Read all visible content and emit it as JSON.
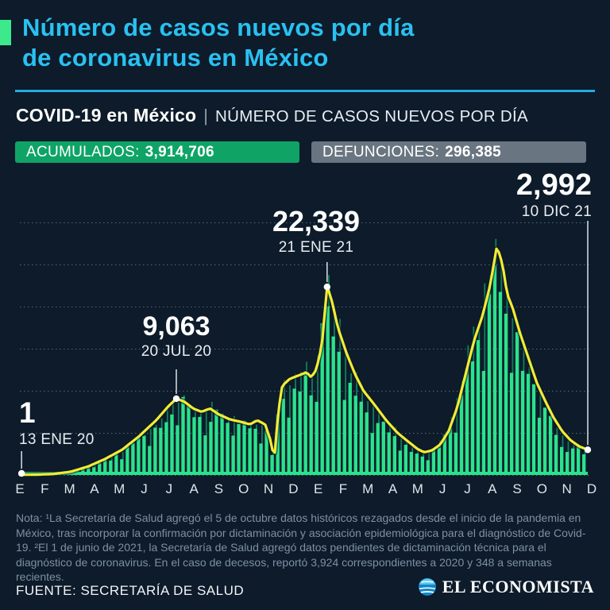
{
  "header": {
    "title_line1": "Número de casos nuevos por día",
    "title_line2": "de coronavirus en México"
  },
  "subtitle": {
    "bold": "COVID-19 en México",
    "separator": "|",
    "rest": "NÚMERO DE CASOS NUEVOS POR DÍA"
  },
  "badges": {
    "accumulated_label": "ACUMULADOS:",
    "accumulated_value": "3,914,706",
    "deaths_label": "DEFUNCIONES:",
    "deaths_value": "296,385"
  },
  "chart_data": {
    "type": "bar+line",
    "title": "COVID-19 en México | Número de casos nuevos por día",
    "legend_position": "none",
    "grid": "dotted-horizontal",
    "ylim": [
      0,
      30000
    ],
    "y_gridline_values": [
      0,
      5000,
      10000,
      15000,
      20000,
      25000,
      30000
    ],
    "x_months": [
      "E",
      "F",
      "M",
      "A",
      "M",
      "J",
      "J",
      "A",
      "S",
      "O",
      "N",
      "D",
      "E",
      "F",
      "M",
      "A",
      "M",
      "J",
      "J",
      "A",
      "S",
      "O",
      "N",
      "D"
    ],
    "annotations": [
      {
        "value": "1",
        "date": "13 ENE 20",
        "cases": 1,
        "frac": 0.003
      },
      {
        "value": "9,063",
        "date": "20 JUL 20",
        "cases": 9063,
        "frac": 0.2755
      },
      {
        "value": "22,339",
        "date": "21 ENE 21",
        "cases": 22339,
        "frac": 0.541
      },
      {
        "value": "2,992",
        "date": "10 DIC 21",
        "cases": 2992,
        "frac": 1.0
      }
    ],
    "avg_line_keypoints": [
      [
        0.0,
        20
      ],
      [
        0.03,
        40
      ],
      [
        0.06,
        120
      ],
      [
        0.09,
        400
      ],
      [
        0.12,
        1000
      ],
      [
        0.15,
        1900
      ],
      [
        0.18,
        3000
      ],
      [
        0.21,
        4600
      ],
      [
        0.24,
        6500
      ],
      [
        0.262,
        8200
      ],
      [
        0.2755,
        9063
      ],
      [
        0.29,
        8700
      ],
      [
        0.305,
        7900
      ],
      [
        0.32,
        7500
      ],
      [
        0.335,
        7900
      ],
      [
        0.35,
        7200
      ],
      [
        0.37,
        6600
      ],
      [
        0.39,
        6300
      ],
      [
        0.405,
        6000
      ],
      [
        0.418,
        6500
      ],
      [
        0.432,
        6000
      ],
      [
        0.441,
        4200
      ],
      [
        0.448,
        1900
      ],
      [
        0.455,
        7500
      ],
      [
        0.462,
        10600
      ],
      [
        0.475,
        11400
      ],
      [
        0.49,
        11800
      ],
      [
        0.505,
        12200
      ],
      [
        0.513,
        11600
      ],
      [
        0.522,
        12500
      ],
      [
        0.532,
        15500
      ],
      [
        0.541,
        22500
      ],
      [
        0.55,
        20500
      ],
      [
        0.56,
        17500
      ],
      [
        0.575,
        14500
      ],
      [
        0.59,
        12000
      ],
      [
        0.605,
        10000
      ],
      [
        0.625,
        8300
      ],
      [
        0.645,
        6500
      ],
      [
        0.665,
        5000
      ],
      [
        0.685,
        3900
      ],
      [
        0.7,
        3100
      ],
      [
        0.712,
        2700
      ],
      [
        0.725,
        2900
      ],
      [
        0.74,
        3600
      ],
      [
        0.755,
        5200
      ],
      [
        0.77,
        8000
      ],
      [
        0.785,
        12000
      ],
      [
        0.8,
        16000
      ],
      [
        0.815,
        19000
      ],
      [
        0.828,
        22500
      ],
      [
        0.84,
        27200
      ],
      [
        0.85,
        25000
      ],
      [
        0.858,
        21500
      ],
      [
        0.868,
        19800
      ],
      [
        0.88,
        17000
      ],
      [
        0.895,
        14000
      ],
      [
        0.91,
        11000
      ],
      [
        0.925,
        8800
      ],
      [
        0.94,
        6800
      ],
      [
        0.955,
        5200
      ],
      [
        0.97,
        4100
      ],
      [
        0.985,
        3400
      ],
      [
        1.0,
        2992
      ]
    ],
    "colors": {
      "bar": "#2be28c",
      "bar_spike": "#0f7e5c",
      "line": "#f4eb34",
      "grid": "#93a5b2",
      "marker": "#ffffff",
      "marker_line": "#ccd6de"
    }
  },
  "footnote": "Nota: ¹La Secretaría de Salud agregó el 5 de octubre datos históricos rezagados desde el inicio de la pandemia en México, tras incorporar la confirmación por dictaminación y asociación epidemiológica para el diagnóstico de Covid-19. ²El 1 de junio de 2021, la Secretaría de Salud agregó datos pendientes de dictaminación técnica para el diagnóstico de coronavirus. En el caso de decesos, reportó 3,924 correspondientes a 2020 y 348 a semanas recientes.",
  "footer": {
    "source": "FUENTE: SECRETARÍA DE SALUD",
    "brand": "EL ECONOMISTA"
  },
  "colors": {
    "background": "#0d1b2a",
    "title": "#29c1f1",
    "accent_square": "#3ce98b",
    "divider": "#26abdd",
    "badge_green": "#0fa466",
    "badge_gray": "#697580"
  }
}
